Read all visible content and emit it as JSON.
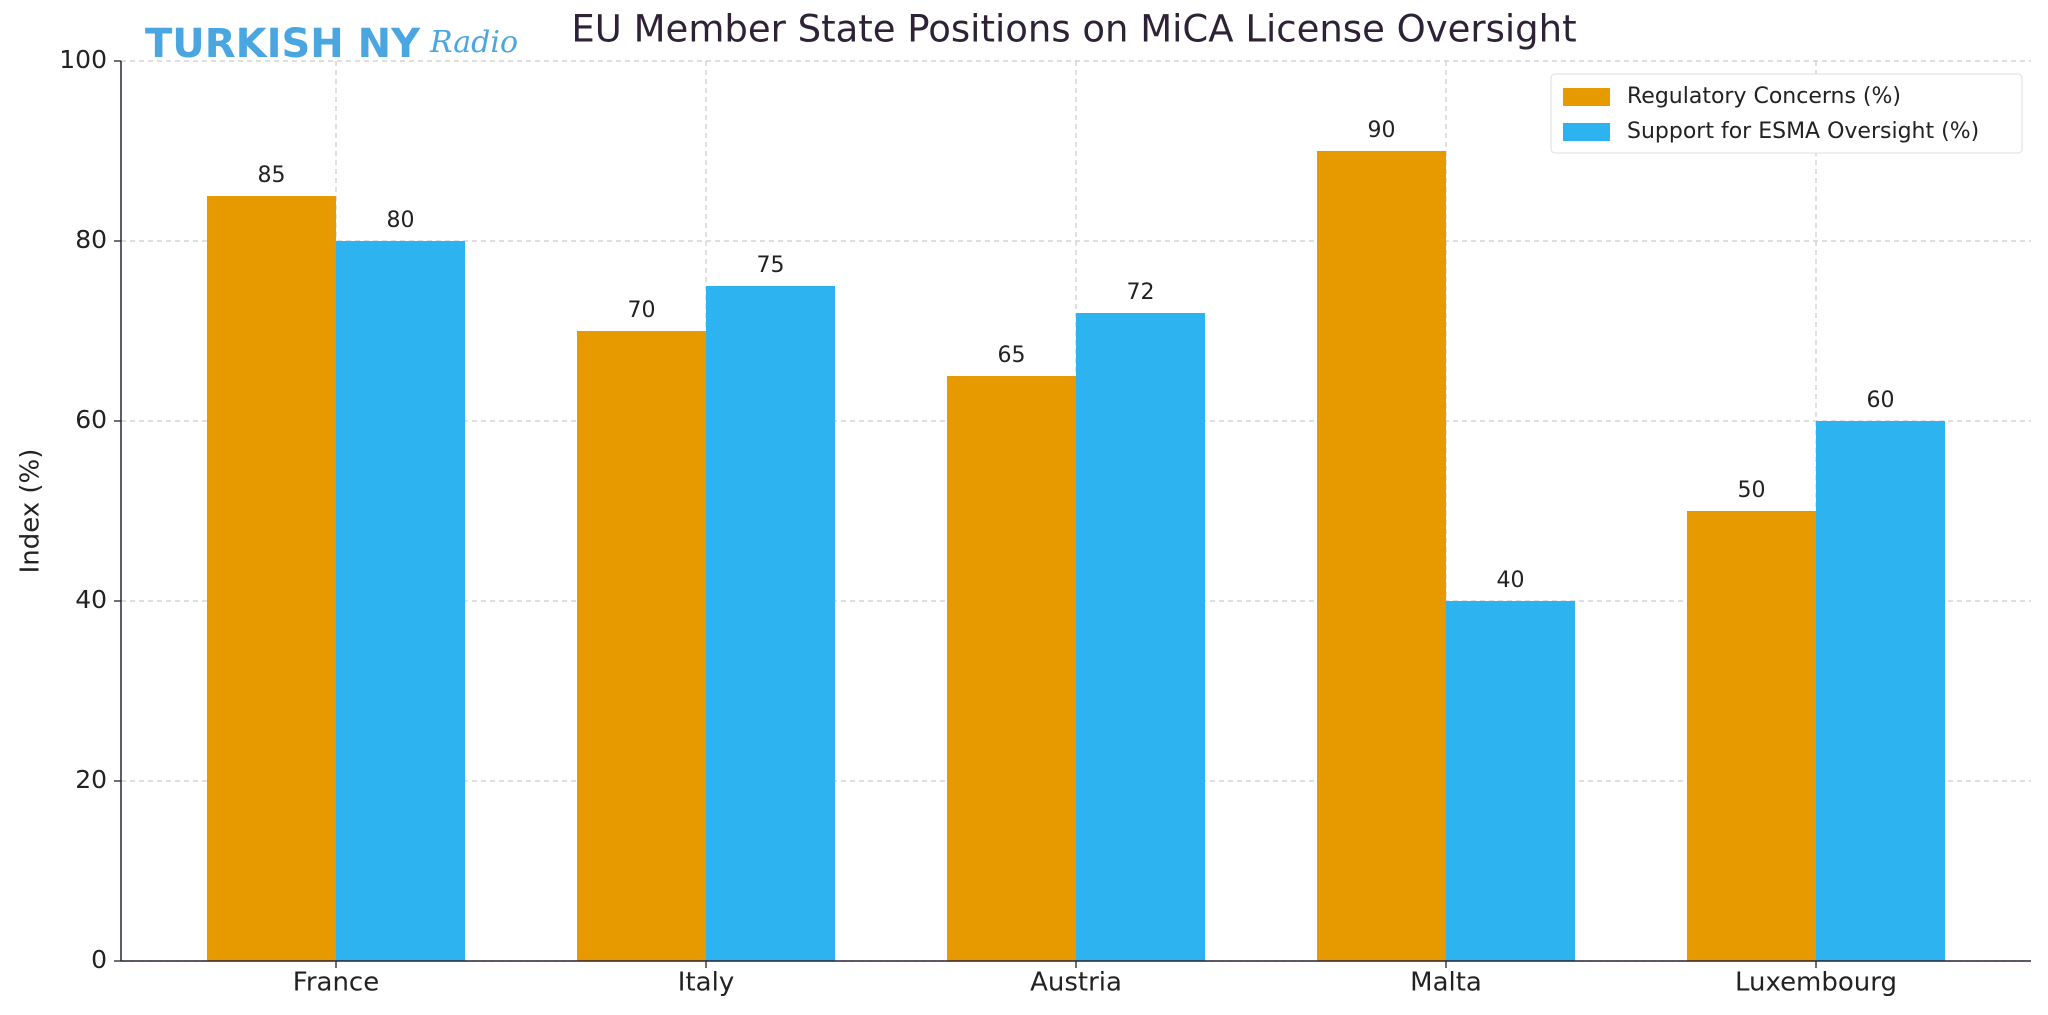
{
  "logo": {
    "text": "TURKISH NY",
    "script": "Radio"
  },
  "chart_data": {
    "type": "bar",
    "title": "EU Member State Positions on MiCA License Oversight",
    "y_label": "Index (%)",
    "categories": [
      "France",
      "Italy",
      "Austria",
      "Malta",
      "Luxembourg"
    ],
    "series": [
      {
        "name": "Regulatory Concerns (%)",
        "color": "#e69a00",
        "values": [
          85,
          70,
          65,
          90,
          50
        ]
      },
      {
        "name": "Support for ESMA Oversight (%)",
        "color": "#2db4f0",
        "values": [
          80,
          75,
          72,
          40,
          60
        ]
      }
    ],
    "ylim": [
      0,
      100
    ],
    "yticks": [
      0,
      20,
      40,
      60,
      80,
      100
    ],
    "grid": true,
    "legend": "upper right",
    "value_labels_shown": true
  }
}
